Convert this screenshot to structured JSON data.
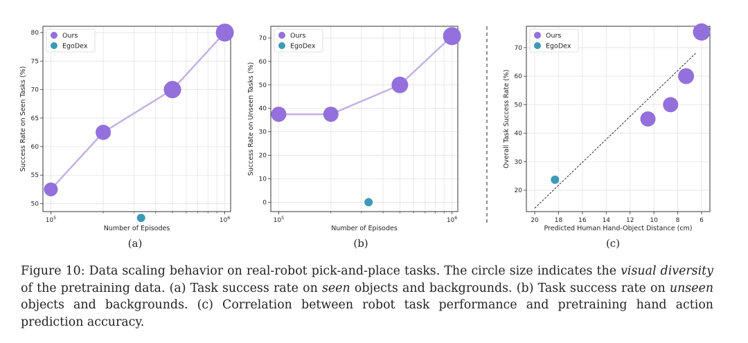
{
  "colors": {
    "ours": "#9370db",
    "ours_line": "#c3b1e6",
    "egodex": "#3d99b8",
    "grid": "#e2e2e2",
    "axis": "#333333"
  },
  "chart_data": [
    {
      "id": "a",
      "type": "scatter",
      "sublabel": "(a)",
      "xlabel": "Number of Episodes",
      "ylabel": "Success Rate on Seen Tasks (%)",
      "xscale": "log",
      "xlim": [
        90000,
        1080000
      ],
      "ylim": [
        48.6,
        81.1
      ],
      "yticks": [
        50,
        55,
        60,
        65,
        70,
        75,
        80
      ],
      "xticks": [
        {
          "value": 100000,
          "base": "10",
          "exp": "5"
        },
        {
          "value": 1000000,
          "base": "10",
          "exp": "6"
        }
      ],
      "legend": {
        "position": "top-left",
        "entries": [
          "Ours",
          "EgoDex"
        ]
      },
      "grid": true,
      "series": [
        {
          "name": "Ours",
          "connected": true,
          "points": [
            {
              "x": 100000,
              "y": 52.5,
              "size": 10
            },
            {
              "x": 200000,
              "y": 62.5,
              "size": 11
            },
            {
              "x": 500000,
              "y": 70.0,
              "size": 12.5
            },
            {
              "x": 1000000,
              "y": 80.0,
              "size": 13
            }
          ]
        },
        {
          "name": "EgoDex",
          "connected": false,
          "points": [
            {
              "x": 330000,
              "y": 47.5,
              "size": 6
            }
          ]
        }
      ]
    },
    {
      "id": "b",
      "type": "scatter",
      "sublabel": "(b)",
      "xlabel": "Number of Episodes",
      "ylabel": "Success Rate on Unseen Tasks (%)",
      "xscale": "log",
      "xlim": [
        90000,
        1080000
      ],
      "ylim": [
        -4,
        75
      ],
      "yticks": [
        0,
        10,
        20,
        30,
        40,
        50,
        60,
        70
      ],
      "xticks": [
        {
          "value": 100000,
          "base": "10",
          "exp": "5"
        },
        {
          "value": 1000000,
          "base": "10",
          "exp": "6"
        }
      ],
      "legend": {
        "position": "top-left",
        "entries": [
          "Ours",
          "EgoDex"
        ]
      },
      "grid": true,
      "series": [
        {
          "name": "Ours",
          "connected": true,
          "points": [
            {
              "x": 100000,
              "y": 37.5,
              "size": 11
            },
            {
              "x": 200000,
              "y": 37.5,
              "size": 11
            },
            {
              "x": 500000,
              "y": 50.0,
              "size": 12
            },
            {
              "x": 1000000,
              "y": 70.8,
              "size": 13
            }
          ]
        },
        {
          "name": "EgoDex",
          "connected": false,
          "points": [
            {
              "x": 330000,
              "y": 0,
              "size": 6
            }
          ]
        }
      ]
    },
    {
      "id": "c",
      "type": "scatter",
      "sublabel": "(c)",
      "xlabel": "Predicted Human Hand-Object Distance (cm)",
      "ylabel": "Overall Task Success Rate (%)",
      "xscale": "linear",
      "x_inverted": true,
      "xlim": [
        20.7,
        5.3
      ],
      "ylim": [
        12.5,
        77.5
      ],
      "yticks": [
        20,
        30,
        40,
        50,
        60,
        70
      ],
      "xticks": [
        20,
        18,
        16,
        14,
        12,
        10,
        8,
        6
      ],
      "legend": {
        "position": "top-left",
        "entries": [
          "Ours",
          "EgoDex"
        ]
      },
      "grid": true,
      "trendline": {
        "style": "dashed",
        "from": [
          20,
          13.7
        ],
        "to": [
          6.5,
          68
        ]
      },
      "series": [
        {
          "name": "Ours",
          "connected": false,
          "points": [
            {
              "x": 10.5,
              "y": 45.0,
              "size": 11
            },
            {
              "x": 8.6,
              "y": 50.0,
              "size": 11
            },
            {
              "x": 7.3,
              "y": 60.0,
              "size": 11.5
            },
            {
              "x": 6.0,
              "y": 75.5,
              "size": 12.5
            }
          ]
        },
        {
          "name": "EgoDex",
          "connected": false,
          "points": [
            {
              "x": 18.3,
              "y": 23.7,
              "size": 6
            }
          ]
        }
      ]
    }
  ],
  "caption": {
    "label": "Figure 10:",
    "t1": " Data scaling behavior on real-robot pick-and-place tasks.  The circle size indicates the ",
    "e1": "visual diversity",
    "t2": " of the pretraining data. (a) Task success rate on ",
    "e2": "seen",
    "t3": " objects and backgrounds. (b) Task success rate on ",
    "e3": "unseen",
    "t4": " objects and backgrounds. (c) Correlation between robot task performance and pretraining hand action prediction accuracy."
  }
}
